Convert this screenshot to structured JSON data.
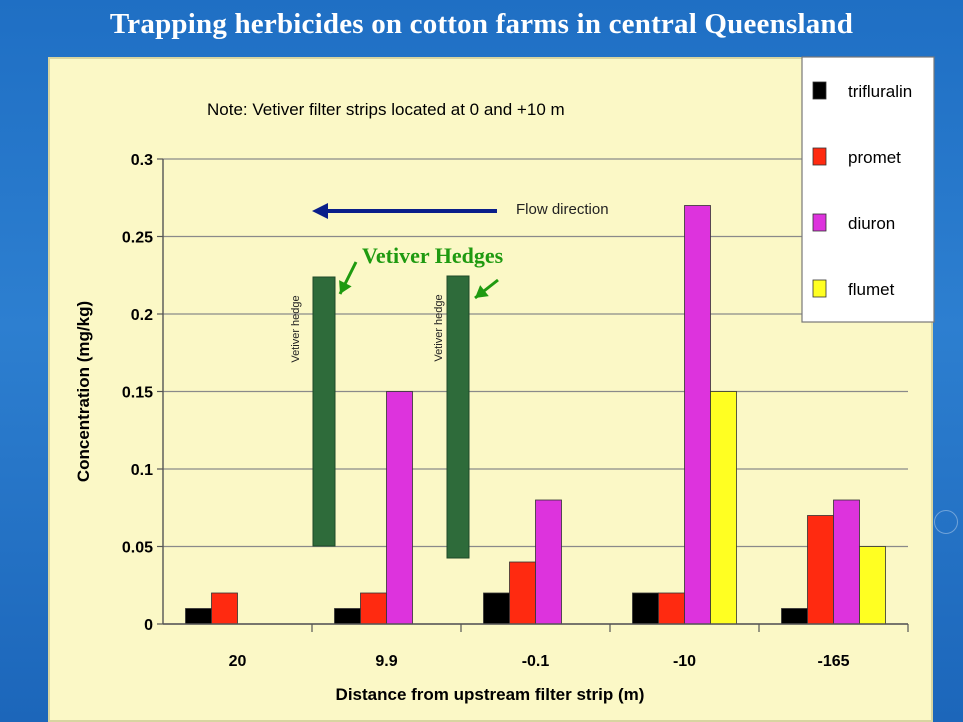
{
  "slide_title": "Trapping herbicides on cotton farms in central Queensland",
  "annotations": {
    "note": "Note: Vetiver filter strips located at 0 and +10 m",
    "flow_direction": "Flow direction",
    "vetiver_hedges": "Vetiver Hedges",
    "hedge_label": "Vetiver hedge"
  },
  "colors": {
    "trifluralin": "#000000",
    "promet": "#ff2a10",
    "diuron": "#dd33dd",
    "flumet": "#ffff22",
    "hedge": "#2e6b3a",
    "hedges_label": "#1f9a10",
    "flow_arrow": "#0a1f8a",
    "plot_bg": "#fbf8c6"
  },
  "chart_data": {
    "type": "bar",
    "categories": [
      "20",
      "9.9",
      "-0.1",
      "-10",
      "-165"
    ],
    "series": [
      {
        "name": "trifluralin",
        "values": [
          0.01,
          0.01,
          0.02,
          0.02,
          0.01
        ]
      },
      {
        "name": "promet",
        "values": [
          0.02,
          0.02,
          0.04,
          0.02,
          0.07
        ]
      },
      {
        "name": "diuron",
        "values": [
          0,
          0.15,
          0.08,
          0.27,
          0.08
        ]
      },
      {
        "name": "flumet",
        "values": [
          0,
          0,
          0,
          0.15,
          0.05
        ]
      }
    ],
    "yticks": [
      "0",
      "0.05",
      "0.1",
      "0.15",
      "0.2",
      "0.25",
      "0.3"
    ],
    "ylim": [
      0,
      0.3
    ],
    "xlabel": "Distance from upstream filter strip (m)",
    "ylabel": "Concentration (mg/kg)",
    "legend_position": "top-right",
    "grid": true
  }
}
